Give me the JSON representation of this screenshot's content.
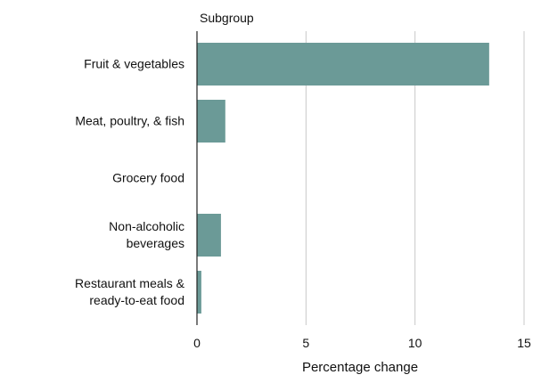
{
  "chart_data": {
    "type": "bar",
    "orientation": "horizontal",
    "title": "Subgroup",
    "x_label": "Percentage change",
    "categories": [
      "Fruit & vegetables",
      "Meat, poultry, & fish",
      "Grocery food",
      "Non-alcoholic\nbeverages",
      "Restaurant meals &\nready-to-eat food"
    ],
    "values": [
      13.4,
      1.3,
      0,
      1.1,
      0.2
    ],
    "color": "#6b9a97",
    "xlim": [
      0,
      15
    ],
    "xticks": [
      0,
      5,
      10,
      15
    ],
    "grid": true
  }
}
